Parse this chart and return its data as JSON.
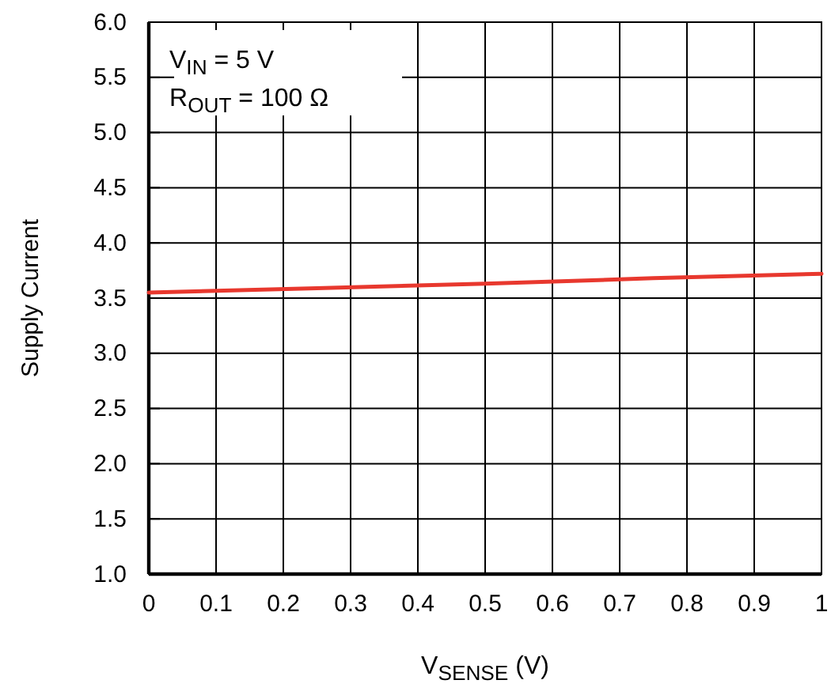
{
  "chart_data": {
    "type": "line",
    "xlabel": "V$_{SENSE}$ (V)",
    "ylabel": "Supply Current",
    "annotations": [
      "V$_{IN}$ = 5 V",
      "R$_{OUT}$ = 100 Ω"
    ],
    "series": [
      {
        "color": "#e8382e",
        "x": [
          0,
          0.25,
          0.5,
          0.75,
          1
        ],
        "values": [
          3.55,
          3.59,
          3.63,
          3.68,
          3.72
        ]
      }
    ],
    "xlim": [
      0,
      1
    ],
    "ylim": [
      1,
      6
    ],
    "xticks": [
      0,
      0.1,
      0.2,
      0.3,
      0.4,
      0.5,
      0.6,
      0.7,
      0.8,
      0.9,
      1
    ],
    "yticks": [
      {
        "value": 1,
        "label": "1.0"
      },
      1.5,
      {
        "value": 2,
        "label": "2.0"
      },
      2.5,
      {
        "value": 3,
        "label": "3.0"
      },
      3.5,
      {
        "value": 4,
        "label": "4.0"
      },
      4.5,
      {
        "value": 5,
        "label": "5.0"
      },
      5.5,
      {
        "value": 6,
        "label": "6.0"
      }
    ],
    "grid": true
  }
}
